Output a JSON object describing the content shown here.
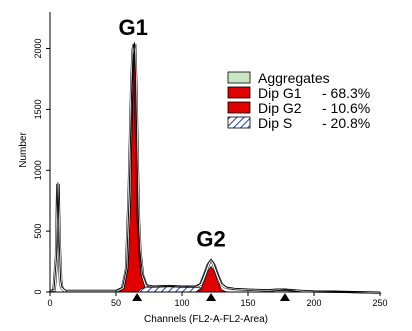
{
  "chart_data": {
    "type": "area",
    "title": "",
    "xlabel": "Channels (FL2-A-FL2-Area)",
    "ylabel": "Number",
    "xlim": [
      0,
      250
    ],
    "ylim": [
      0,
      2300
    ],
    "x_ticks": [
      0,
      50,
      100,
      150,
      200,
      250
    ],
    "y_ticks": [
      0,
      500,
      1000,
      1500,
      2000
    ],
    "grid": false,
    "legend_position": "top-right",
    "peak_labels": [
      {
        "text": "G1",
        "x": 63,
        "y": 2030
      },
      {
        "text": "G2",
        "x": 122,
        "y": 290
      }
    ],
    "markers_x": [
      66,
      122,
      178
    ],
    "legend": [
      {
        "name": "Aggregates",
        "value": "",
        "fill": "#c8e6c0"
      },
      {
        "name": "Dip G1",
        "value": "- 68.3%",
        "fill": "#e00000"
      },
      {
        "name": "Dip G2",
        "value": "- 10.6%",
        "fill": "#e00000"
      },
      {
        "name": "Dip S",
        "value": "- 20.8%",
        "fill": "hatch"
      }
    ],
    "series": [
      {
        "name": "Dip G1",
        "x": [
          52,
          56,
          59,
          61,
          62,
          63,
          64,
          65,
          66,
          67,
          69,
          72,
          76
        ],
        "values": [
          0,
          30,
          200,
          700,
          1400,
          1900,
          1990,
          1600,
          1000,
          500,
          150,
          30,
          0
        ]
      },
      {
        "name": "Dip S",
        "x": [
          66,
          70,
          80,
          90,
          100,
          110,
          116,
          120
        ],
        "values": [
          0,
          30,
          45,
          48,
          45,
          40,
          30,
          0
        ]
      },
      {
        "name": "Dip G2",
        "x": [
          110,
          114,
          117,
          120,
          122,
          124,
          127,
          130,
          134
        ],
        "values": [
          0,
          20,
          90,
          180,
          210,
          180,
          90,
          20,
          0
        ]
      },
      {
        "name": "Aggregates",
        "x": [
          165,
          172,
          178,
          184,
          190
        ],
        "values": [
          0,
          12,
          18,
          12,
          0
        ]
      }
    ],
    "histogram_outline": {
      "x": [
        0,
        3,
        5,
        6,
        7,
        8,
        9,
        12,
        50,
        55,
        58,
        60,
        62,
        63,
        64,
        65,
        66,
        67,
        68,
        70,
        73,
        78,
        90,
        100,
        110,
        114,
        117,
        120,
        122,
        124,
        127,
        130,
        134,
        140,
        150,
        165,
        172,
        178,
        184,
        190,
        200,
        215,
        230,
        250
      ],
      "values": [
        15,
        20,
        300,
        900,
        400,
        100,
        40,
        15,
        15,
        40,
        200,
        800,
        1700,
        2000,
        2050,
        1700,
        1100,
        600,
        350,
        150,
        60,
        50,
        55,
        50,
        50,
        70,
        150,
        240,
        270,
        240,
        150,
        70,
        40,
        30,
        25,
        20,
        25,
        25,
        20,
        15,
        10,
        8,
        5,
        0
      ]
    }
  }
}
